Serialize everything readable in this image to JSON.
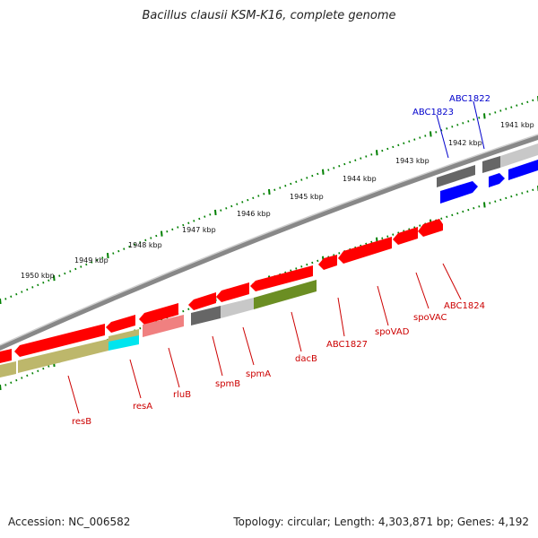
{
  "title": "Bacillus clausii KSM-K16, complete genome",
  "footer": {
    "accession": "Accession: NC_006582",
    "summary": "Topology: circular; Length: 4,303,871 bp; Genes: 4,192"
  },
  "kbp_ticks": [
    "1941 kbp",
    "1942 kbp",
    "1943 kbp",
    "1944 kbp",
    "1945 kbp",
    "1946 kbp",
    "1947 kbp",
    "1948 kbp",
    "1949 kbp",
    "1950 kbp"
  ],
  "gene_labels": [
    {
      "name": "ABC1822",
      "color": "#0000cc"
    },
    {
      "name": "ABC1823",
      "color": "#0000cc"
    },
    {
      "name": "ABC1824",
      "color": "#cc0000"
    },
    {
      "name": "spoVAC",
      "color": "#cc0000"
    },
    {
      "name": "spoVAD",
      "color": "#cc0000"
    },
    {
      "name": "ABC1827",
      "color": "#cc0000"
    },
    {
      "name": "dacB",
      "color": "#cc0000"
    },
    {
      "name": "spmA",
      "color": "#cc0000"
    },
    {
      "name": "spmB",
      "color": "#cc0000"
    },
    {
      "name": "rluB",
      "color": "#cc0000"
    },
    {
      "name": "resA",
      "color": "#cc0000"
    },
    {
      "name": "resB",
      "color": "#cc0000"
    }
  ],
  "colors": {
    "cds_red": "#ff0000",
    "cds_blue": "#0000ff",
    "dark_gray": "#666666",
    "light_gray": "#c8c8c8",
    "olive": "#6b8e23",
    "khaki": "#bdb76b",
    "cyan": "#00e5ee",
    "salmon": "#f08080",
    "tick_green": "#008000"
  }
}
